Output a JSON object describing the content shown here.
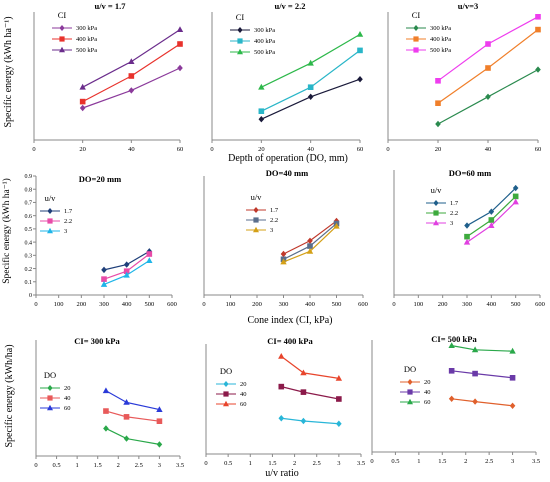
{
  "figure": {
    "row_labels": [
      {
        "ylabel": "Specific energy (kWh ha⁻¹)",
        "xlabel": "Depth of operation (DO, mm)"
      },
      {
        "ylabel": "Specific energy (kWh ha⁻¹)",
        "xlabel": "Cone index (CI, kPa)"
      },
      {
        "ylabel": "Specific energy (kWh/ha)",
        "xlabel": "u/v ratio"
      }
    ]
  },
  "chart_data": [
    {
      "type": "line",
      "title": "u/v = 1.7",
      "legend_title": "CI",
      "legend_position": "top-left",
      "x_ticks": [
        "0",
        "20",
        "40",
        "60"
      ],
      "xlim": [
        0,
        60
      ],
      "ylim": [
        0,
        0.8
      ],
      "grid": false,
      "y_ticks_shown": false,
      "series": [
        {
          "name": "300 kPa",
          "color": "#8B3A9B",
          "marker": "diamond",
          "x": [
            20,
            40,
            60
          ],
          "values": [
            0.2,
            0.31,
            0.45
          ]
        },
        {
          "name": "400 kPa",
          "color": "#E8322C",
          "marker": "square",
          "x": [
            20,
            40,
            60
          ],
          "values": [
            0.24,
            0.4,
            0.6
          ]
        },
        {
          "name": "500 kPa",
          "color": "#6B2D8C",
          "marker": "triangle",
          "x": [
            20,
            40,
            60
          ],
          "values": [
            0.33,
            0.49,
            0.69
          ]
        }
      ]
    },
    {
      "type": "line",
      "title": "u/v = 2.2",
      "legend_title": "CI",
      "legend_position": "top-left",
      "x_ticks": [
        "0",
        "20",
        "40",
        "60"
      ],
      "xlim": [
        0,
        60
      ],
      "ylim": [
        0,
        0.8
      ],
      "grid": false,
      "y_ticks_shown": false,
      "series": [
        {
          "name": "300 kPa",
          "color": "#1A1A3A",
          "marker": "diamond",
          "x": [
            20,
            40,
            60
          ],
          "values": [
            0.13,
            0.27,
            0.38
          ]
        },
        {
          "name": "400 kPa",
          "color": "#29B6C8",
          "marker": "square",
          "x": [
            20,
            40,
            60
          ],
          "values": [
            0.18,
            0.33,
            0.56
          ]
        },
        {
          "name": "500 kPa",
          "color": "#2DB84A",
          "marker": "triangle",
          "x": [
            20,
            40,
            60
          ],
          "values": [
            0.33,
            0.48,
            0.66
          ]
        }
      ]
    },
    {
      "type": "line",
      "title": "u/v=3",
      "legend_title": "CI",
      "legend_position": "top-left",
      "x_ticks": [
        "0",
        "20",
        "40",
        "60"
      ],
      "xlim": [
        0,
        60
      ],
      "ylim": [
        0,
        0.8
      ],
      "grid": false,
      "y_ticks_shown": false,
      "series": [
        {
          "name": "300 kPa",
          "color": "#2A8A4E",
          "marker": "diamond",
          "x": [
            20,
            40,
            60
          ],
          "values": [
            0.1,
            0.27,
            0.44
          ]
        },
        {
          "name": "400 kPa",
          "color": "#F07F2A",
          "marker": "square",
          "x": [
            20,
            40,
            60
          ],
          "values": [
            0.23,
            0.45,
            0.69
          ]
        },
        {
          "name": "500 kPa",
          "color": "#EE3DEE",
          "marker": "square",
          "x": [
            20,
            40,
            60
          ],
          "values": [
            0.37,
            0.6,
            0.77
          ]
        }
      ]
    },
    {
      "type": "line",
      "title": "DO=20 mm",
      "legend_title": "u/v",
      "legend_position": "top-left",
      "x_ticks": [
        "0",
        "100",
        "200",
        "300",
        "400",
        "500",
        "600"
      ],
      "xlim": [
        0,
        600
      ],
      "y_ticks": [
        "0",
        "0.1",
        "0.2",
        "0.3",
        "0.4",
        "0.5",
        "0.6",
        "0.7",
        "0.8",
        "0.9"
      ],
      "ylim": [
        0,
        0.9
      ],
      "grid": false,
      "series": [
        {
          "name": "1.7",
          "color": "#1F3F7A",
          "marker": "diamond",
          "x": [
            300,
            400,
            500
          ],
          "values": [
            0.19,
            0.23,
            0.33
          ]
        },
        {
          "name": "2.2",
          "color": "#E84BA8",
          "marker": "square",
          "x": [
            300,
            400,
            500
          ],
          "values": [
            0.12,
            0.18,
            0.31
          ]
        },
        {
          "name": "3",
          "color": "#1FB5E8",
          "marker": "triangle",
          "x": [
            300,
            400,
            500
          ],
          "values": [
            0.08,
            0.15,
            0.26
          ]
        }
      ]
    },
    {
      "type": "line",
      "title": "DO=40 mm",
      "legend_title": "u/v",
      "legend_position": "top-left",
      "x_ticks": [
        "0",
        "100",
        "200",
        "300",
        "400",
        "500",
        "600"
      ],
      "xlim": [
        0,
        600
      ],
      "ylim": [
        0,
        0.9
      ],
      "grid": false,
      "y_ticks_shown": false,
      "series": [
        {
          "name": "1.7",
          "color": "#C0392B",
          "marker": "diamond",
          "x": [
            300,
            400,
            500
          ],
          "values": [
            0.31,
            0.41,
            0.56
          ]
        },
        {
          "name": "2.2",
          "color": "#5A6E8C",
          "marker": "square",
          "x": [
            300,
            400,
            500
          ],
          "values": [
            0.27,
            0.37,
            0.54
          ]
        },
        {
          "name": "3",
          "color": "#D4A017",
          "marker": "triangle",
          "x": [
            300,
            400,
            500
          ],
          "values": [
            0.25,
            0.33,
            0.52
          ]
        }
      ]
    },
    {
      "type": "line",
      "title": "DO=60 mm",
      "legend_title": "u/v",
      "legend_position": "top-left",
      "x_ticks": [
        "0",
        "100",
        "200",
        "300",
        "400",
        "500",
        "600"
      ],
      "xlim": [
        0,
        600
      ],
      "ylim": [
        0,
        0.9
      ],
      "grid": false,
      "y_ticks_shown": false,
      "series": [
        {
          "name": "1.7",
          "color": "#1F5F8B",
          "marker": "diamond",
          "x": [
            300,
            400,
            500
          ],
          "values": [
            0.5,
            0.6,
            0.77
          ]
        },
        {
          "name": "2.2",
          "color": "#3DAA3D",
          "marker": "square",
          "x": [
            300,
            400,
            500
          ],
          "values": [
            0.42,
            0.54,
            0.71
          ]
        },
        {
          "name": "3",
          "color": "#E040E0",
          "marker": "triangle",
          "x": [
            300,
            400,
            500
          ],
          "values": [
            0.38,
            0.5,
            0.67
          ]
        }
      ]
    },
    {
      "type": "line",
      "title": "CI= 300 kPa",
      "legend_title": "DO",
      "legend_position": "top-left",
      "x_ticks": [
        "0",
        "0.5",
        "1",
        "1.5",
        "2",
        "2.5",
        "3",
        "3.5"
      ],
      "xlim": [
        0,
        3.5
      ],
      "ylim": [
        0,
        0.8
      ],
      "grid": false,
      "y_ticks_shown": false,
      "series": [
        {
          "name": "20",
          "color": "#2AA84A",
          "marker": "diamond",
          "x": [
            1.7,
            2.2,
            3
          ],
          "values": [
            0.19,
            0.12,
            0.08
          ]
        },
        {
          "name": "40",
          "color": "#E85A5A",
          "marker": "square",
          "x": [
            1.7,
            2.2,
            3
          ],
          "values": [
            0.31,
            0.27,
            0.24
          ]
        },
        {
          "name": "60",
          "color": "#2A3AD8",
          "marker": "triangle",
          "x": [
            1.7,
            2.2,
            3
          ],
          "values": [
            0.45,
            0.37,
            0.32
          ]
        }
      ]
    },
    {
      "type": "line",
      "title": "CI= 400 kPa",
      "legend_title": "DO",
      "legend_position": "top-left",
      "x_ticks": [
        "0",
        "0.5",
        "1",
        "1.5",
        "2",
        "2.5",
        "3",
        "3.5"
      ],
      "xlim": [
        0,
        3.5
      ],
      "ylim": [
        0,
        0.8
      ],
      "grid": false,
      "y_ticks_shown": false,
      "series": [
        {
          "name": "20",
          "color": "#29B6D8",
          "marker": "diamond",
          "x": [
            1.7,
            2.2,
            3
          ],
          "values": [
            0.26,
            0.24,
            0.22
          ]
        },
        {
          "name": "40",
          "color": "#8B1A4A",
          "marker": "square",
          "x": [
            1.7,
            2.2,
            3
          ],
          "values": [
            0.49,
            0.45,
            0.4
          ]
        },
        {
          "name": "60",
          "color": "#E8452C",
          "marker": "triangle",
          "x": [
            1.7,
            2.2,
            3
          ],
          "values": [
            0.71,
            0.59,
            0.55
          ]
        }
      ]
    },
    {
      "type": "line",
      "title": "CI= 500 kPa",
      "legend_title": "DO",
      "legend_position": "top-left",
      "x_ticks": [
        "0",
        "0.5",
        "1",
        "1.5",
        "2",
        "2.5",
        "3",
        "3.5"
      ],
      "xlim": [
        0,
        3.5
      ],
      "ylim": [
        0,
        0.8
      ],
      "grid": false,
      "y_ticks_shown": false,
      "series": [
        {
          "name": "20",
          "color": "#E0602C",
          "marker": "diamond",
          "x": [
            1.7,
            2.2,
            3
          ],
          "values": [
            0.38,
            0.36,
            0.33
          ]
        },
        {
          "name": "40",
          "color": "#6A3AA8",
          "marker": "square",
          "x": [
            1.7,
            2.2,
            3
          ],
          "values": [
            0.58,
            0.56,
            0.53
          ]
        },
        {
          "name": "60",
          "color": "#2AA84A",
          "marker": "triangle",
          "x": [
            1.7,
            2.2,
            3
          ],
          "values": [
            0.76,
            0.73,
            0.72
          ]
        }
      ]
    }
  ]
}
